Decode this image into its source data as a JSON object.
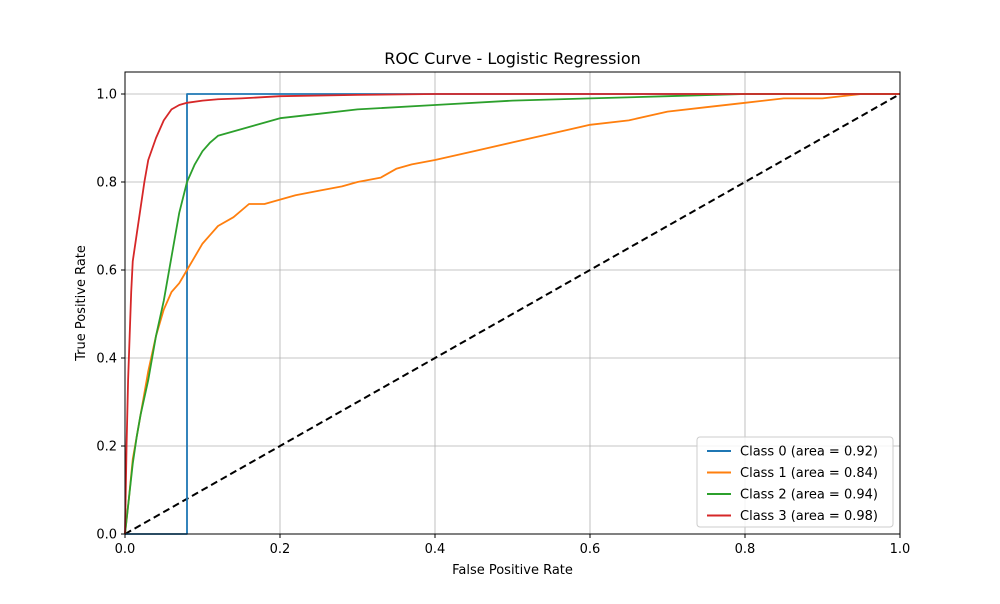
{
  "chart_data": {
    "type": "line",
    "title": "ROC Curve - Logistic Regression",
    "xlabel": "False Positive Rate",
    "ylabel": "True Positive Rate",
    "xlim": [
      0.0,
      1.0
    ],
    "ylim": [
      0.0,
      1.05
    ],
    "xticks": [
      "0.0",
      "0.2",
      "0.4",
      "0.6",
      "0.8",
      "1.0"
    ],
    "yticks": [
      "0.0",
      "0.2",
      "0.4",
      "0.6",
      "0.8",
      "1.0"
    ],
    "grid": true,
    "legend_position": "lower-right",
    "series": [
      {
        "name": "Class 0 (area = 0.92)",
        "color": "#1f77b4",
        "x": [
          0.0,
          0.08,
          0.08,
          0.33,
          1.0
        ],
        "y": [
          0.0,
          0.0,
          1.0,
          1.0,
          1.0
        ]
      },
      {
        "name": "Class 1 (area = 0.84)",
        "color": "#ff7f0e",
        "x": [
          0.0,
          0.005,
          0.01,
          0.02,
          0.03,
          0.04,
          0.05,
          0.06,
          0.07,
          0.08,
          0.09,
          0.1,
          0.11,
          0.12,
          0.14,
          0.16,
          0.18,
          0.2,
          0.22,
          0.25,
          0.28,
          0.3,
          0.33,
          0.35,
          0.37,
          0.4,
          0.45,
          0.5,
          0.55,
          0.6,
          0.65,
          0.7,
          0.75,
          0.8,
          0.85,
          0.9,
          0.95,
          1.0
        ],
        "y": [
          0.0,
          0.08,
          0.17,
          0.27,
          0.37,
          0.45,
          0.51,
          0.55,
          0.57,
          0.6,
          0.63,
          0.66,
          0.68,
          0.7,
          0.72,
          0.75,
          0.75,
          0.76,
          0.77,
          0.78,
          0.79,
          0.8,
          0.81,
          0.83,
          0.84,
          0.85,
          0.87,
          0.89,
          0.91,
          0.93,
          0.94,
          0.96,
          0.97,
          0.98,
          0.99,
          0.99,
          1.0,
          1.0
        ]
      },
      {
        "name": "Class 2 (area = 0.94)",
        "color": "#2ca02c",
        "x": [
          0.0,
          0.005,
          0.01,
          0.015,
          0.02,
          0.03,
          0.04,
          0.05,
          0.06,
          0.07,
          0.08,
          0.09,
          0.1,
          0.11,
          0.12,
          0.14,
          0.16,
          0.18,
          0.2,
          0.25,
          0.3,
          0.4,
          0.5,
          0.6,
          0.7,
          0.8,
          0.9,
          1.0
        ],
        "y": [
          0.0,
          0.08,
          0.16,
          0.22,
          0.27,
          0.35,
          0.45,
          0.53,
          0.63,
          0.73,
          0.8,
          0.84,
          0.87,
          0.89,
          0.905,
          0.915,
          0.925,
          0.935,
          0.945,
          0.955,
          0.965,
          0.975,
          0.985,
          0.99,
          0.995,
          1.0,
          1.0,
          1.0
        ]
      },
      {
        "name": "Class 3 (area = 0.98)",
        "color": "#d62728",
        "x": [
          0.0,
          0.002,
          0.004,
          0.006,
          0.008,
          0.01,
          0.015,
          0.02,
          0.025,
          0.03,
          0.04,
          0.05,
          0.06,
          0.07,
          0.08,
          0.1,
          0.12,
          0.15,
          0.2,
          0.3,
          0.4,
          0.6,
          0.8,
          1.0
        ],
        "y": [
          0.0,
          0.2,
          0.35,
          0.45,
          0.55,
          0.62,
          0.68,
          0.74,
          0.8,
          0.85,
          0.9,
          0.94,
          0.965,
          0.975,
          0.98,
          0.985,
          0.988,
          0.99,
          0.995,
          0.998,
          1.0,
          1.0,
          1.0,
          1.0
        ]
      }
    ],
    "reference_line": {
      "color": "#000000",
      "style": "dashed",
      "x": [
        0.0,
        1.0
      ],
      "y": [
        0.0,
        1.0
      ]
    }
  }
}
